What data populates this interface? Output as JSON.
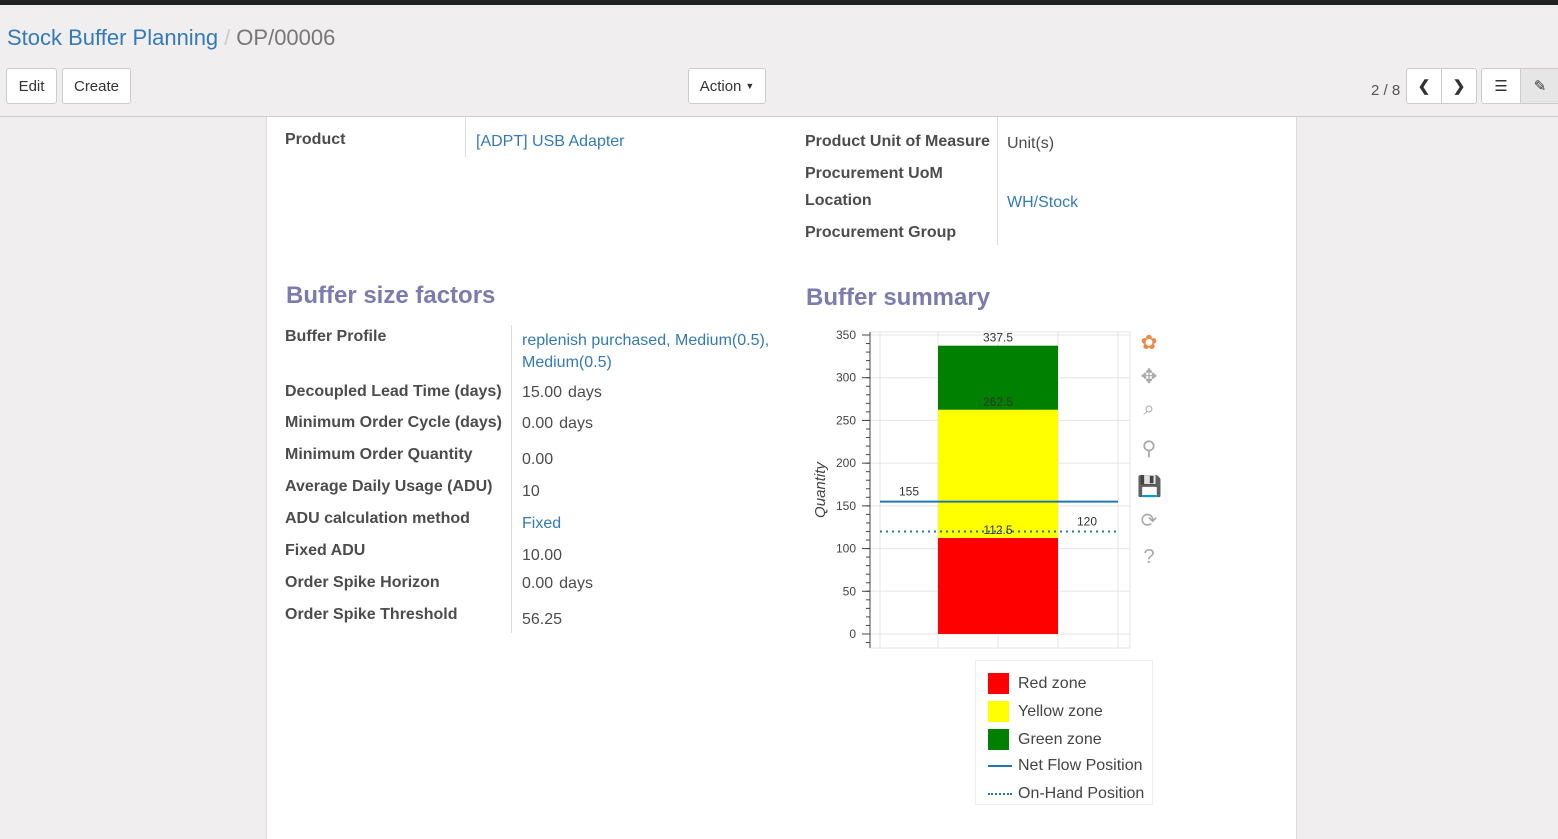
{
  "breadcrumb": {
    "parent": "Stock Buffer Planning",
    "current": "OP/00006"
  },
  "buttons": {
    "edit": "Edit",
    "create": "Create",
    "action": "Action"
  },
  "pager": "2 / 8",
  "fields": {
    "product_label": "Product",
    "product_value": "[ADPT] USB Adapter",
    "uom_label": "Product Unit of Measure",
    "uom_value": "Unit(s)",
    "proc_uom_label": "Procurement UoM",
    "location_label": "Location",
    "location_value": "WH/Stock",
    "proc_group_label": "Procurement Group"
  },
  "factors": {
    "title": "Buffer size factors",
    "rows": [
      {
        "label": "Buffer Profile",
        "value": "replenish purchased, Medium(0.5), Medium(0.5)",
        "link": true
      },
      {
        "label": "Decoupled Lead Time (days)",
        "value": "15.00",
        "unit": "days"
      },
      {
        "label": "Minimum Order Cycle (days)",
        "value": "0.00",
        "unit": "days"
      },
      {
        "label": "Minimum Order Quantity",
        "value": "0.00"
      },
      {
        "label": "Average Daily Usage (ADU)",
        "value": "10"
      },
      {
        "label": "ADU calculation method",
        "value": "Fixed",
        "link": true
      },
      {
        "label": "Fixed ADU",
        "value": "10.00"
      },
      {
        "label": "Order Spike Horizon",
        "value": "0.00",
        "unit": "days"
      },
      {
        "label": "Order Spike Threshold",
        "value": "56.25"
      }
    ]
  },
  "summary": {
    "title": "Buffer summary"
  },
  "chart_data": {
    "type": "bar",
    "ylabel": "Quantity",
    "ylim": [
      -16,
      352
    ],
    "yticks": [
      0,
      50,
      100,
      150,
      200,
      250,
      300,
      350
    ],
    "grid": true,
    "stack": [
      {
        "name": "Red zone",
        "from": 0,
        "to": 112.5,
        "color": "#ff0000"
      },
      {
        "name": "Yellow zone",
        "from": 112.5,
        "to": 262.5,
        "color": "#ffff00"
      },
      {
        "name": "Green zone",
        "from": 262.5,
        "to": 337.5,
        "color": "#008000"
      }
    ],
    "bar_labels": [
      "112.5",
      "262.5",
      "337.5"
    ],
    "lines": [
      {
        "name": "Net Flow Position",
        "value": 155,
        "label": "155",
        "style": "solid",
        "color": "#1f77b4"
      },
      {
        "name": "On-Hand Position",
        "value": 120,
        "label": "120",
        "style": "dotted",
        "color": "#1f77b4"
      }
    ],
    "legend": "bottom"
  },
  "toolbar_icons": [
    "bokeh-logo-icon",
    "pan-icon",
    "box-zoom-icon",
    "wheel-zoom-icon",
    "save-icon",
    "reset-icon",
    "help-icon"
  ]
}
